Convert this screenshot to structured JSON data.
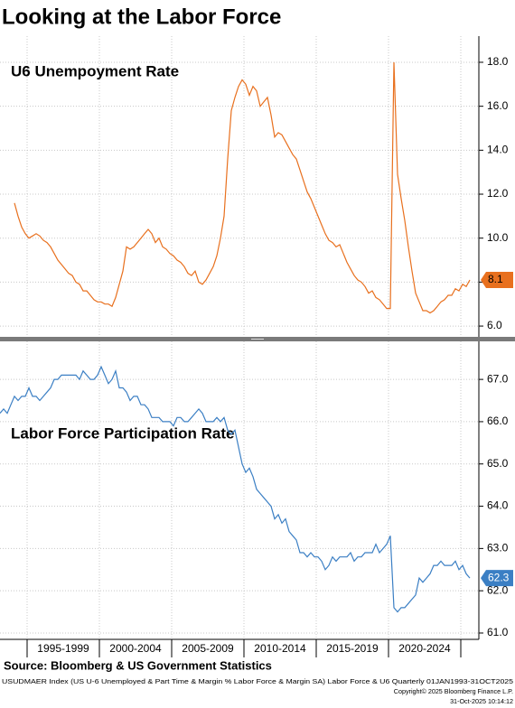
{
  "title": "Looking at the Labor Force",
  "x_axis": {
    "categories": [
      "1995-1999",
      "2000-2004",
      "2005-2009",
      "2010-2014",
      "2015-2019",
      "2020-2024"
    ]
  },
  "chart_data": [
    {
      "type": "line",
      "title": "U6 Unempoyment Rate",
      "color": "#e8701e",
      "ylim": [
        5.51,
        19.19
      ],
      "yticks": [
        {
          "value": 6,
          "label": "6.0"
        },
        {
          "value": 8,
          "label": "8.0"
        },
        {
          "value": 10,
          "label": "10.0"
        },
        {
          "value": 12,
          "label": "12.0"
        },
        {
          "value": 14,
          "label": "14.0"
        },
        {
          "value": 16,
          "label": "16.0"
        },
        {
          "value": 18,
          "label": "18.0"
        }
      ],
      "values": [
        null,
        null,
        null,
        null,
        11.6,
        11.0,
        10.5,
        10.2,
        10.0,
        10.1,
        10.2,
        10.1,
        9.9,
        9.8,
        9.6,
        9.3,
        9.0,
        8.8,
        8.6,
        8.4,
        8.3,
        8.0,
        7.9,
        7.6,
        7.6,
        7.4,
        7.2,
        7.1,
        7.1,
        7.0,
        7.0,
        6.9,
        7.3,
        7.9,
        8.5,
        9.6,
        9.5,
        9.6,
        9.8,
        10.0,
        10.2,
        10.4,
        10.2,
        9.8,
        10.0,
        9.6,
        9.5,
        9.3,
        9.2,
        9.0,
        8.9,
        8.7,
        8.4,
        8.3,
        8.5,
        8.0,
        7.9,
        8.1,
        8.4,
        8.7,
        9.2,
        10.0,
        11.0,
        13.6,
        15.8,
        16.4,
        16.9,
        17.2,
        17.0,
        16.5,
        16.9,
        16.7,
        16.0,
        16.2,
        16.4,
        15.6,
        14.6,
        14.8,
        14.7,
        14.4,
        14.1,
        13.8,
        13.6,
        13.1,
        12.6,
        12.1,
        11.8,
        11.4,
        11.0,
        10.6,
        10.2,
        9.9,
        9.8,
        9.6,
        9.7,
        9.3,
        8.9,
        8.6,
        8.3,
        8.1,
        8.0,
        7.8,
        7.5,
        7.6,
        7.3,
        7.2,
        7.0,
        6.8,
        6.8,
        18.0,
        12.9,
        11.8,
        10.8,
        9.6,
        8.5,
        7.5,
        7.1,
        6.7,
        6.7,
        6.6,
        6.7,
        6.9,
        7.1,
        7.2,
        7.4,
        7.4,
        7.7,
        7.6,
        7.9,
        7.8,
        8.1
      ]
    },
    {
      "type": "line",
      "title": "Labor Force Participation Rate",
      "color": "#3b7fc4",
      "ylim": [
        60.85,
        67.9
      ],
      "yticks": [
        {
          "value": 61,
          "label": "61.0"
        },
        {
          "value": 62,
          "label": "62.0"
        },
        {
          "value": 63,
          "label": "63.0"
        },
        {
          "value": 64,
          "label": "64.0"
        },
        {
          "value": 65,
          "label": "65.0"
        },
        {
          "value": 66,
          "label": "66.0"
        },
        {
          "value": 67,
          "label": "67.0"
        }
      ],
      "values": [
        66.2,
        66.3,
        66.2,
        66.4,
        66.6,
        66.5,
        66.6,
        66.6,
        66.8,
        66.6,
        66.6,
        66.5,
        66.6,
        66.7,
        66.8,
        67.0,
        67.0,
        67.1,
        67.1,
        67.1,
        67.1,
        67.1,
        67.0,
        67.2,
        67.1,
        67.0,
        67.0,
        67.1,
        67.3,
        67.1,
        66.9,
        67.0,
        67.2,
        66.8,
        66.8,
        66.7,
        66.5,
        66.6,
        66.6,
        66.4,
        66.4,
        66.3,
        66.1,
        66.1,
        66.1,
        66.0,
        66.0,
        66.0,
        65.9,
        66.1,
        66.1,
        66.0,
        66.0,
        66.1,
        66.2,
        66.3,
        66.2,
        66.0,
        66.0,
        66.0,
        66.1,
        66.0,
        66.1,
        65.8,
        65.7,
        65.8,
        65.4,
        65.0,
        64.8,
        64.9,
        64.7,
        64.4,
        64.3,
        64.2,
        64.1,
        64.0,
        63.7,
        63.8,
        63.6,
        63.7,
        63.4,
        63.3,
        63.2,
        62.9,
        62.9,
        62.8,
        62.9,
        62.8,
        62.8,
        62.7,
        62.5,
        62.6,
        62.8,
        62.7,
        62.8,
        62.8,
        62.8,
        62.9,
        62.7,
        62.8,
        62.8,
        62.9,
        62.9,
        62.9,
        63.1,
        62.9,
        63.0,
        63.1,
        63.3,
        61.6,
        61.5,
        61.6,
        61.6,
        61.7,
        61.8,
        61.9,
        62.3,
        62.2,
        62.3,
        62.4,
        62.6,
        62.6,
        62.7,
        62.6,
        62.6,
        62.6,
        62.7,
        62.5,
        62.6,
        62.4,
        62.3
      ]
    }
  ],
  "source": "Source: Bloomberg & US Government Statistics",
  "footer": [
    "USUDMAER Index (US U-6 Unemployed & Part Time & Margin % Labor Force & Margin SA) Labor Force & U6 Quarterly 01JAN1993-31OCT2025",
    "Copyright© 2025 Bloomberg Finance L.P.",
    "31-Oct-2025 10:14:12"
  ]
}
